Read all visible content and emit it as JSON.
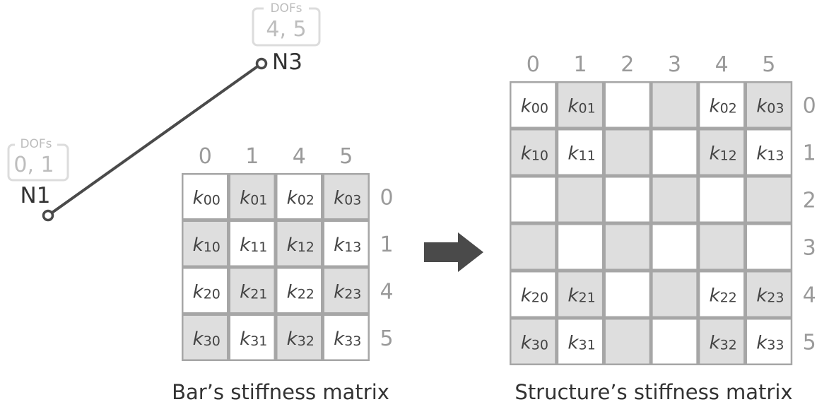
{
  "nodes": {
    "n1": {
      "label": "N1",
      "dofs_tag": "DOFs",
      "dofs": "0, 1"
    },
    "n3": {
      "label": "N3",
      "dofs_tag": "DOFs",
      "dofs": "4, 5"
    }
  },
  "bar_matrix": {
    "caption": "Bar’s stiffness matrix",
    "col_labels": [
      "0",
      "1",
      "4",
      "5"
    ],
    "row_labels": [
      "0",
      "1",
      "4",
      "5"
    ],
    "cells": [
      [
        {
          "k": "k",
          "sub": "00",
          "shade": false
        },
        {
          "k": "k",
          "sub": "01",
          "shade": true
        },
        {
          "k": "k",
          "sub": "02",
          "shade": false
        },
        {
          "k": "k",
          "sub": "03",
          "shade": true
        }
      ],
      [
        {
          "k": "k",
          "sub": "10",
          "shade": true
        },
        {
          "k": "k",
          "sub": "11",
          "shade": false
        },
        {
          "k": "k",
          "sub": "12",
          "shade": true
        },
        {
          "k": "k",
          "sub": "13",
          "shade": false
        }
      ],
      [
        {
          "k": "k",
          "sub": "20",
          "shade": false
        },
        {
          "k": "k",
          "sub": "21",
          "shade": true
        },
        {
          "k": "k",
          "sub": "22",
          "shade": false
        },
        {
          "k": "k",
          "sub": "23",
          "shade": true
        }
      ],
      [
        {
          "k": "k",
          "sub": "30",
          "shade": true
        },
        {
          "k": "k",
          "sub": "31",
          "shade": false
        },
        {
          "k": "k",
          "sub": "32",
          "shade": true
        },
        {
          "k": "k",
          "sub": "33",
          "shade": false
        }
      ]
    ]
  },
  "structure_matrix": {
    "caption": "Structure’s stiffness matrix",
    "col_labels": [
      "0",
      "1",
      "2",
      "3",
      "4",
      "5"
    ],
    "row_labels": [
      "0",
      "1",
      "2",
      "3",
      "4",
      "5"
    ],
    "cells": [
      [
        {
          "k": "k",
          "sub": "00",
          "shade": false
        },
        {
          "k": "k",
          "sub": "01",
          "shade": true
        },
        {
          "k": "",
          "sub": "",
          "shade": false
        },
        {
          "k": "",
          "sub": "",
          "shade": true
        },
        {
          "k": "k",
          "sub": "02",
          "shade": false
        },
        {
          "k": "k",
          "sub": "03",
          "shade": true
        }
      ],
      [
        {
          "k": "k",
          "sub": "10",
          "shade": true
        },
        {
          "k": "k",
          "sub": "11",
          "shade": false
        },
        {
          "k": "",
          "sub": "",
          "shade": true
        },
        {
          "k": "",
          "sub": "",
          "shade": false
        },
        {
          "k": "k",
          "sub": "12",
          "shade": true
        },
        {
          "k": "k",
          "sub": "13",
          "shade": false
        }
      ],
      [
        {
          "k": "",
          "sub": "",
          "shade": false
        },
        {
          "k": "",
          "sub": "",
          "shade": true
        },
        {
          "k": "",
          "sub": "",
          "shade": false
        },
        {
          "k": "",
          "sub": "",
          "shade": true
        },
        {
          "k": "",
          "sub": "",
          "shade": false
        },
        {
          "k": "",
          "sub": "",
          "shade": true
        }
      ],
      [
        {
          "k": "",
          "sub": "",
          "shade": true
        },
        {
          "k": "",
          "sub": "",
          "shade": false
        },
        {
          "k": "",
          "sub": "",
          "shade": true
        },
        {
          "k": "",
          "sub": "",
          "shade": false
        },
        {
          "k": "",
          "sub": "",
          "shade": true
        },
        {
          "k": "",
          "sub": "",
          "shade": false
        }
      ],
      [
        {
          "k": "k",
          "sub": "20",
          "shade": false
        },
        {
          "k": "k",
          "sub": "21",
          "shade": true
        },
        {
          "k": "",
          "sub": "",
          "shade": false
        },
        {
          "k": "",
          "sub": "",
          "shade": true
        },
        {
          "k": "k",
          "sub": "22",
          "shade": false
        },
        {
          "k": "k",
          "sub": "23",
          "shade": true
        }
      ],
      [
        {
          "k": "k",
          "sub": "30",
          "shade": true
        },
        {
          "k": "k",
          "sub": "31",
          "shade": false
        },
        {
          "k": "",
          "sub": "",
          "shade": true
        },
        {
          "k": "",
          "sub": "",
          "shade": false
        },
        {
          "k": "k",
          "sub": "32",
          "shade": true
        },
        {
          "k": "k",
          "sub": "33",
          "shade": false
        }
      ]
    ]
  },
  "colors": {
    "cell_shade": "#dedede",
    "cell_plain": "#ffffff",
    "grid_border": "#a6a6a6",
    "bar_line": "#4a4a4a",
    "arrow": "#4a4a4a",
    "tag_border": "#dcdcdc",
    "tag_text": "#bdbdbd"
  },
  "icons": {
    "transform_arrow": "right-arrow-icon"
  }
}
